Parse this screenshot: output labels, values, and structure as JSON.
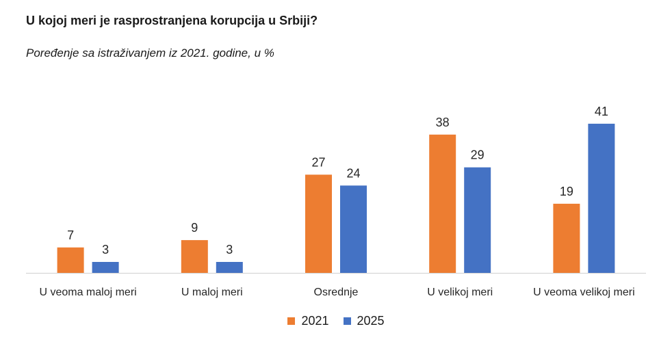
{
  "title": "U kojoj meri je rasprostranjena korupcija u Srbiji?",
  "subtitle": "Poređenje sa istraživanjem iz 2021. godine, u %",
  "chart_data": {
    "type": "bar",
    "title": "U kojoj meri je rasprostranjena korupcija u Srbiji?",
    "subtitle": "Poređenje sa istraživanjem iz 2021. godine, u %",
    "categories": [
      "U veoma maloj meri",
      "U maloj meri",
      "Osrednje",
      "U velikoj meri",
      "U veoma velikoj meri"
    ],
    "series": [
      {
        "name": "2021",
        "color": "#ED7D31",
        "values": [
          7,
          9,
          27,
          38,
          19
        ]
      },
      {
        "name": "2025",
        "color": "#4472C4",
        "values": [
          3,
          3,
          24,
          29,
          41
        ]
      }
    ],
    "ylim": [
      0,
      45
    ],
    "grid": false,
    "data_labels": true,
    "legend_position": "bottom"
  }
}
